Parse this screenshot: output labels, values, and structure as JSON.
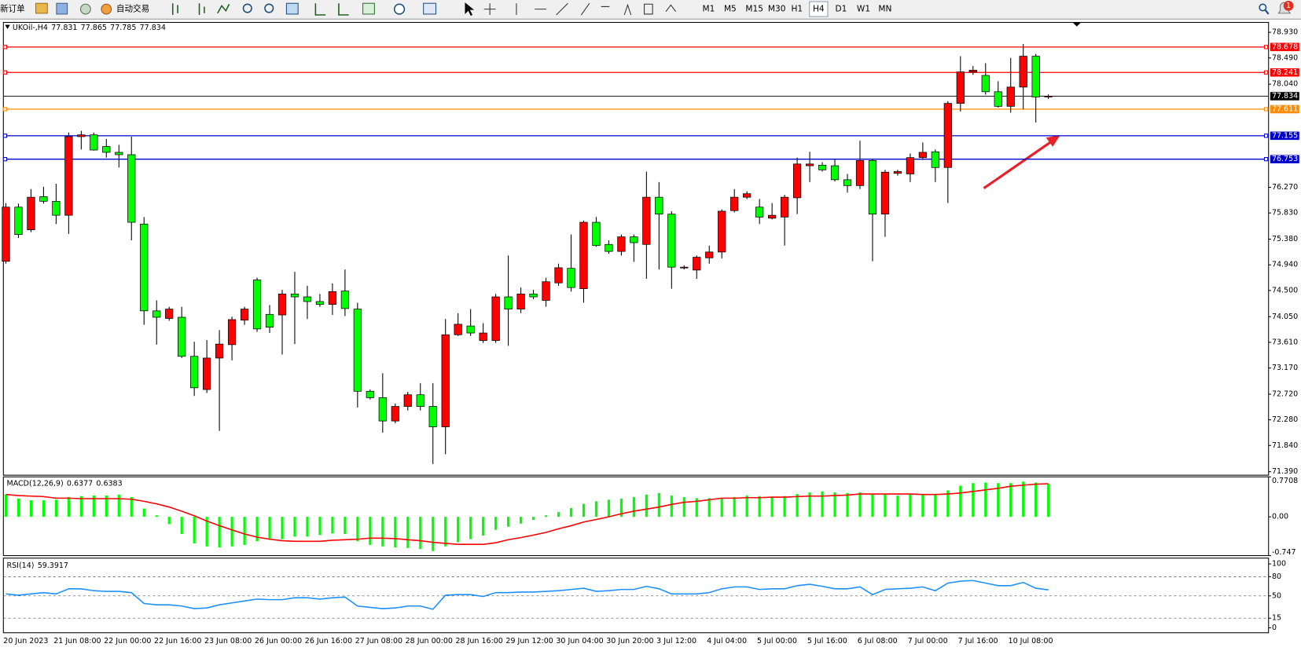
{
  "toolbar": {
    "new_order": "新订单",
    "auto_trading": "自动交易",
    "timeframes": [
      "M1",
      "M5",
      "M15",
      "M30",
      "H1",
      "H4",
      "D1",
      "W1",
      "MN"
    ],
    "badge": "1"
  },
  "chart_data": [
    {
      "type": "candlestick",
      "title": "UKOil-,H4",
      "categories": [
        "20 Jun 2023",
        null,
        null,
        null,
        "21 Jun 08:00",
        null,
        null,
        null,
        "22 Jun 00:00",
        null,
        null,
        null,
        "22 Jun 16:00",
        null,
        null,
        null,
        "23 Jun 08:00",
        null,
        null,
        null,
        "26 Jun 00:00",
        null,
        null,
        null,
        "26 Jun 16:00",
        null,
        null,
        null,
        "27 Jun 08:00",
        null,
        null,
        null,
        "28 Jun 00:00",
        null,
        null,
        null,
        "28 Jun 16:00",
        null,
        null,
        null,
        "29 Jun 12:00",
        null,
        null,
        null,
        "30 Jun 04:00",
        null,
        null,
        null,
        "30 Jun 20:00",
        null,
        null,
        null,
        "3 Jul 12:00",
        null,
        null,
        null,
        "4 Jul 04:00",
        null,
        null,
        null,
        "5 Jul 00:00",
        null,
        null,
        null,
        "5 Jul 16:00",
        null,
        null,
        null,
        "6 Jul 08:00",
        null,
        null,
        null,
        "7 Jul 00:00",
        null,
        null,
        null,
        "7 Jul 16:00",
        null,
        null,
        null,
        "10 Jul 08:00",
        null,
        null,
        null
      ],
      "open": [
        75.0,
        75.93,
        75.54,
        76.11,
        76.03,
        75.79,
        77.14,
        77.17,
        76.97,
        76.87,
        76.83,
        75.64,
        74.15,
        74.02,
        74.04,
        73.37,
        72.8,
        73.34,
        73.57,
        73.99,
        74.68,
        74.09,
        74.08,
        74.44,
        74.39,
        74.31,
        74.26,
        74.49,
        74.18,
        72.77,
        72.66,
        72.26,
        72.51,
        72.71,
        72.51,
        72.16,
        73.74,
        73.89,
        73.64,
        73.64,
        74.39,
        74.18,
        74.44,
        74.33,
        74.63,
        74.88,
        74.53,
        75.67,
        75.29,
        75.17,
        75.42,
        75.29,
        76.1,
        75.81,
        74.89,
        74.85,
        75.06,
        75.16,
        75.87,
        76.1,
        75.93,
        75.74,
        75.76,
        76.09,
        76.64,
        76.65,
        76.64,
        76.4,
        76.3,
        76.73,
        75.81,
        76.51,
        76.5,
        76.78,
        76.88,
        76.61,
        77.71,
        78.25,
        78.19,
        77.91,
        77.66,
        77.99,
        78.52,
        77.831
      ],
      "high": [
        76.0,
        75.99,
        76.24,
        76.28,
        76.33,
        77.21,
        77.24,
        77.21,
        77.1,
        77.0,
        77.14,
        75.76,
        74.33,
        74.22,
        74.22,
        73.62,
        73.65,
        73.82,
        74.05,
        74.22,
        74.72,
        74.25,
        74.51,
        74.82,
        74.58,
        74.44,
        74.62,
        74.86,
        74.29,
        72.8,
        73.08,
        72.56,
        72.76,
        72.91,
        72.91,
        74.01,
        74.11,
        74.18,
        73.94,
        74.44,
        75.1,
        74.55,
        74.51,
        74.72,
        74.96,
        75.46,
        75.7,
        75.76,
        75.36,
        75.46,
        75.46,
        76.54,
        76.36,
        75.86,
        74.93,
        75.1,
        75.27,
        75.89,
        76.24,
        76.2,
        76.07,
        76.0,
        76.14,
        76.78,
        76.88,
        76.7,
        76.75,
        76.5,
        77.07,
        76.75,
        76.57,
        76.57,
        76.85,
        77.04,
        76.92,
        77.75,
        78.52,
        78.35,
        78.4,
        78.09,
        78.49,
        78.73,
        78.56,
        77.865
      ],
      "low": [
        74.96,
        75.4,
        75.5,
        75.99,
        75.64,
        75.47,
        76.92,
        76.9,
        76.78,
        76.61,
        75.36,
        73.91,
        73.57,
        73.98,
        73.34,
        72.69,
        72.74,
        72.09,
        73.3,
        73.91,
        73.79,
        73.77,
        73.4,
        73.58,
        74.01,
        74.22,
        74.08,
        74.06,
        72.49,
        72.63,
        72.06,
        72.22,
        72.44,
        72.44,
        71.52,
        71.69,
        73.72,
        73.72,
        73.6,
        73.6,
        73.55,
        74.11,
        74.35,
        74.22,
        74.58,
        74.48,
        74.29,
        75.25,
        75.13,
        75.1,
        74.99,
        74.7,
        74.86,
        74.53,
        74.86,
        74.7,
        74.96,
        75.05,
        75.84,
        76.07,
        75.64,
        75.72,
        75.27,
        75.81,
        76.36,
        76.54,
        76.37,
        76.18,
        76.24,
        75.0,
        75.42,
        76.47,
        76.36,
        76.74,
        76.36,
        76.0,
        77.57,
        78.2,
        77.86,
        77.64,
        77.55,
        77.61,
        77.38,
        77.785
      ],
      "close": [
        75.93,
        75.46,
        76.1,
        76.03,
        75.79,
        77.14,
        77.17,
        76.91,
        76.87,
        76.83,
        75.67,
        74.15,
        74.04,
        74.18,
        73.37,
        72.83,
        73.34,
        73.58,
        74.0,
        74.18,
        73.84,
        73.87,
        74.44,
        74.39,
        74.31,
        74.26,
        74.48,
        74.19,
        72.77,
        72.66,
        72.26,
        72.51,
        72.71,
        72.51,
        72.16,
        73.74,
        73.92,
        73.77,
        73.77,
        74.39,
        74.18,
        74.44,
        74.39,
        74.65,
        74.89,
        74.55,
        75.67,
        75.27,
        75.17,
        75.42,
        75.32,
        76.1,
        75.81,
        74.9,
        74.9,
        75.07,
        75.16,
        75.86,
        76.1,
        76.16,
        75.76,
        75.79,
        76.1,
        76.67,
        76.67,
        76.57,
        76.4,
        76.3,
        76.73,
        75.81,
        76.53,
        76.54,
        76.78,
        76.87,
        76.61,
        77.71,
        78.25,
        78.28,
        77.91,
        77.66,
        77.99,
        78.52,
        77.82,
        77.834
      ],
      "up_color": "#ff0000",
      "down_color": "#00ff00",
      "ylim": [
        71.33,
        79.1
      ],
      "yticks": [
        {
          "value": 78.93,
          "label": "78.930"
        },
        {
          "value": 78.49,
          "label": "78.490"
        },
        {
          "value": 78.04,
          "label": "78.040"
        },
        {
          "value": 76.27,
          "label": "76.270"
        },
        {
          "value": 75.83,
          "label": "75.830"
        },
        {
          "value": 75.38,
          "label": "75.380"
        },
        {
          "value": 74.94,
          "label": "74.940"
        },
        {
          "value": 74.5,
          "label": "74.500"
        },
        {
          "value": 74.05,
          "label": "74.050"
        },
        {
          "value": 73.61,
          "label": "73.610"
        },
        {
          "value": 73.17,
          "label": "73.170"
        },
        {
          "value": 72.72,
          "label": "72.720"
        },
        {
          "value": 72.28,
          "label": "72.280"
        },
        {
          "value": 71.84,
          "label": "71.840"
        },
        {
          "value": 71.39,
          "label": "71.390"
        }
      ],
      "levels": [
        {
          "value": 78.678,
          "color": "#ff0000"
        },
        {
          "value": 78.241,
          "color": "#ff0000"
        },
        {
          "value": 77.611,
          "color": "#ff8c00"
        },
        {
          "value": 77.155,
          "color": "#0000cd"
        },
        {
          "value": 76.753,
          "color": "#0000cd"
        }
      ],
      "price_line_color": "#000000",
      "grid": false
    },
    {
      "type": "macd",
      "title": "MACD(12,26,9)",
      "series": [
        {
          "color": "#00ff00",
          "values": [
            0.43,
            0.35,
            0.32,
            0.32,
            0.33,
            0.38,
            0.4,
            0.41,
            0.41,
            0.43,
            0.38,
            0.16,
            0.03,
            -0.14,
            -0.33,
            -0.51,
            -0.57,
            -0.59,
            -0.57,
            -0.54,
            -0.47,
            -0.44,
            -0.43,
            -0.38,
            -0.38,
            -0.35,
            -0.32,
            -0.33,
            -0.47,
            -0.54,
            -0.57,
            -0.59,
            -0.6,
            -0.62,
            -0.66,
            -0.57,
            -0.49,
            -0.43,
            -0.36,
            -0.25,
            -0.19,
            -0.13,
            -0.06,
            0.03,
            0.09,
            0.17,
            0.25,
            0.3,
            0.33,
            0.35,
            0.38,
            0.43,
            0.46,
            0.41,
            0.38,
            0.36,
            0.36,
            0.36,
            0.38,
            0.41,
            0.4,
            0.38,
            0.4,
            0.44,
            0.47,
            0.49,
            0.47,
            0.46,
            0.47,
            0.43,
            0.43,
            0.41,
            0.43,
            0.43,
            0.43,
            0.51,
            0.6,
            0.65,
            0.66,
            0.65,
            0.65,
            0.68,
            0.66,
            0.6377
          ]
        },
        {
          "color": "#ff0000",
          "values": [
            0.43,
            0.41,
            0.4,
            0.39,
            0.36,
            0.36,
            0.35,
            0.35,
            0.35,
            0.35,
            0.34,
            0.3,
            0.25,
            0.19,
            0.11,
            0.02,
            -0.08,
            -0.17,
            -0.25,
            -0.33,
            -0.39,
            -0.43,
            -0.46,
            -0.47,
            -0.47,
            -0.47,
            -0.45,
            -0.44,
            -0.43,
            -0.41,
            -0.41,
            -0.42,
            -0.44,
            -0.46,
            -0.49,
            -0.51,
            -0.53,
            -0.53,
            -0.53,
            -0.5,
            -0.44,
            -0.4,
            -0.35,
            -0.3,
            -0.23,
            -0.17,
            -0.1,
            -0.05,
            0.0,
            0.06,
            0.11,
            0.15,
            0.19,
            0.24,
            0.28,
            0.3,
            0.33,
            0.36,
            0.36,
            0.37,
            0.37,
            0.38,
            0.38,
            0.39,
            0.4,
            0.4,
            0.41,
            0.42,
            0.44,
            0.44,
            0.44,
            0.44,
            0.44,
            0.43,
            0.43,
            0.44,
            0.46,
            0.49,
            0.52,
            0.55,
            0.59,
            0.61,
            0.63,
            0.6383
          ]
        }
      ],
      "ylim": [
        -0.747,
        0.7708
      ],
      "yticks": [
        0.7708,
        {
          "value": 0,
          "label": "0.00"
        },
        -0.747
      ]
    },
    {
      "type": "rsi",
      "title": "RSI(14)",
      "series": [
        {
          "color": "#1e90ff",
          "values": [
            53,
            51,
            53,
            55,
            53,
            61,
            61,
            58,
            57,
            57,
            55,
            38,
            36,
            36,
            34,
            30,
            31,
            36,
            39,
            42,
            45,
            44,
            44,
            47,
            47,
            45,
            47,
            48,
            34,
            32,
            30,
            31,
            34,
            34,
            29,
            51,
            52,
            52,
            49,
            55,
            55,
            56,
            56,
            57,
            58,
            60,
            62,
            57,
            58,
            60,
            60,
            65,
            61,
            53,
            53,
            53,
            55,
            61,
            64,
            64,
            60,
            61,
            61,
            66,
            68,
            65,
            61,
            61,
            64,
            52,
            60,
            61,
            62,
            64,
            58,
            70,
            73,
            74,
            70,
            66,
            66,
            71,
            62,
            59.3917
          ]
        }
      ],
      "ylim": [
        0,
        100
      ],
      "yticks": [
        100,
        80,
        50,
        15,
        0
      ],
      "grid": true
    }
  ]
}
